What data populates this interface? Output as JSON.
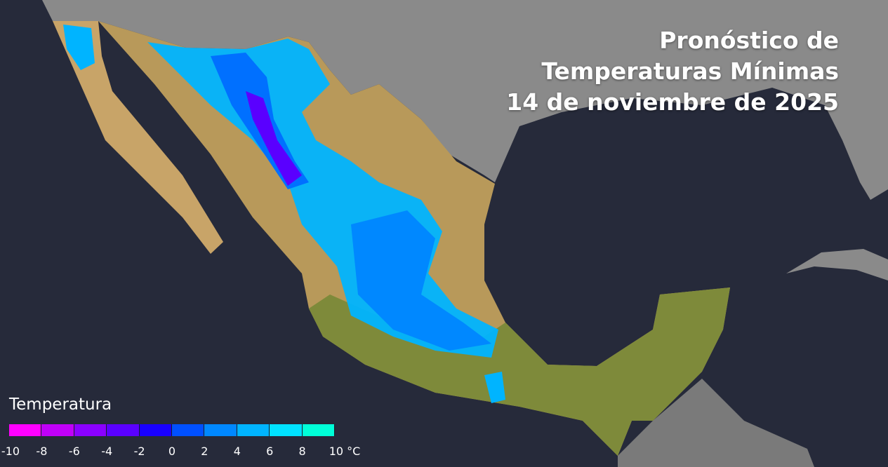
{
  "title": {
    "line1": "Pronóstico de",
    "line2": "Temperaturas Mínimas",
    "line3": "14 de noviembre de 2025"
  },
  "legend": {
    "title": "Temperatura",
    "unit": "°C",
    "ticks": [
      "-10",
      "-8",
      "-6",
      "-4",
      "-2",
      "0",
      "2",
      "4",
      "6",
      "8",
      "10 °C"
    ],
    "colors": [
      "#ff00ff",
      "#c000f8",
      "#8a00ff",
      "#5a00ff",
      "#1800ff",
      "#0050ff",
      "#0088ff",
      "#00b4ff",
      "#00e2ff",
      "#00ffd8"
    ]
  },
  "map_colors": {
    "ocean": "#262a3a",
    "foreign_land": "#8a8a8a",
    "mexico_arid": "#c8a468",
    "mexico_green": "#7e8a3a"
  }
}
